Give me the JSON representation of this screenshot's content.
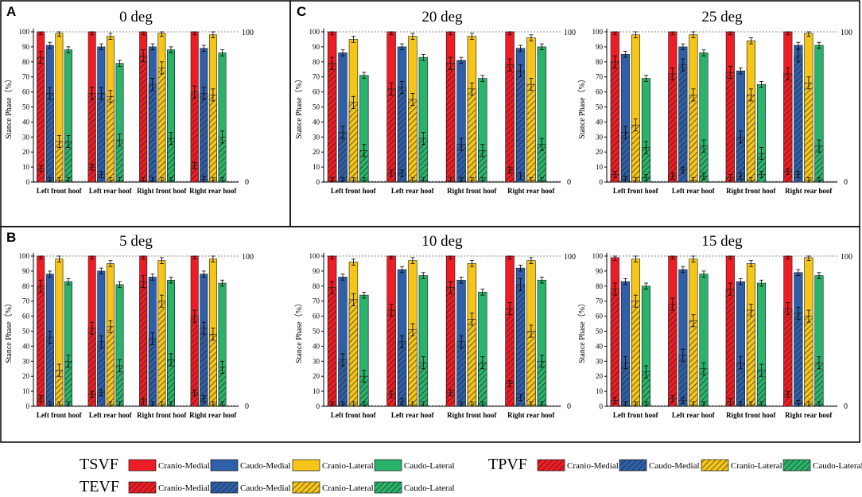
{
  "chart_data": {
    "type": "bar",
    "panel_labels": {
      "A": "A",
      "B": "B",
      "C": "C"
    },
    "categories": [
      "Left front hoof",
      "Left rear hoof",
      "Right front hoof",
      "Right rear hoof"
    ],
    "ylabel": "Stance Phase（%）",
    "ylim": [
      0,
      100
    ],
    "yticks": [
      "0",
      "10",
      "20",
      "30",
      "40",
      "50",
      "60",
      "70",
      "80",
      "90",
      "100"
    ],
    "ref_lines": [
      "100",
      "0"
    ],
    "colors": {
      "Cranio-Medial": "#ee1c24",
      "Caudo-Medial": "#2e5fa8",
      "Cranio-Lateral": "#f5c518",
      "Caudo-Lateral": "#29b36b"
    },
    "series_order": [
      "Cranio-Medial",
      "Caudo-Medial",
      "Cranio-Lateral",
      "Caudo-Lateral"
    ],
    "charts": [
      {
        "title": "0 deg",
        "TSVF": [
          [
            100,
            91,
            99,
            88
          ],
          [
            100,
            90,
            97,
            79
          ],
          [
            100,
            90,
            99,
            88
          ],
          [
            100,
            89,
            98,
            86
          ]
        ],
        "TPVF": [
          [
            83,
            59,
            27,
            27
          ],
          [
            59,
            59,
            57,
            28
          ],
          [
            84,
            65,
            76,
            29
          ],
          [
            60,
            59,
            58,
            30
          ]
        ],
        "TEVF": [
          [
            9,
            1,
            1,
            1
          ],
          [
            10,
            5,
            1,
            1
          ],
          [
            1,
            1,
            1,
            1
          ],
          [
            11,
            2,
            1,
            1
          ]
        ]
      },
      {
        "title": "20 deg",
        "TSVF": [
          [
            100,
            86,
            95,
            71
          ],
          [
            100,
            90,
            97,
            83
          ],
          [
            100,
            81,
            97,
            69
          ],
          [
            100,
            89,
            96,
            90
          ]
        ],
        "TPVF": [
          [
            79,
            33,
            53,
            21
          ],
          [
            62,
            63,
            55,
            29
          ],
          [
            79,
            25,
            62,
            21
          ],
          [
            78,
            74,
            65,
            25
          ]
        ],
        "TEVF": [
          [
            1,
            1,
            1,
            1
          ],
          [
            6,
            6,
            1,
            1
          ],
          [
            1,
            1,
            1,
            1
          ],
          [
            8,
            4,
            1,
            1
          ]
        ]
      },
      {
        "title": "25 deg",
        "TSVF": [
          [
            100,
            85,
            98,
            69
          ],
          [
            100,
            90,
            98,
            86
          ],
          [
            100,
            74,
            94,
            65
          ],
          [
            100,
            91,
            99,
            91
          ]
        ],
        "TPVF": [
          [
            80,
            33,
            38,
            23
          ],
          [
            72,
            78,
            58,
            24
          ],
          [
            73,
            30,
            58,
            19
          ],
          [
            72,
            84,
            66,
            24
          ]
        ],
        "TEVF": [
          [
            5,
            2,
            1,
            3
          ],
          [
            4,
            8,
            1,
            4
          ],
          [
            3,
            4,
            1,
            5
          ],
          [
            7,
            5,
            1,
            1
          ]
        ]
      },
      {
        "title": "5 deg",
        "TSVF": [
          [
            100,
            88,
            98,
            83
          ],
          [
            100,
            90,
            95,
            81
          ],
          [
            100,
            86,
            97,
            84
          ],
          [
            100,
            88,
            98,
            82
          ]
        ],
        "TPVF": [
          [
            80,
            46,
            24,
            30
          ],
          [
            52,
            43,
            53,
            27
          ],
          [
            83,
            45,
            70,
            31
          ],
          [
            60,
            52,
            48,
            26
          ]
        ],
        "TEVF": [
          [
            5,
            1,
            1,
            1
          ],
          [
            8,
            9,
            1,
            1
          ],
          [
            3,
            1,
            1,
            1
          ],
          [
            9,
            5,
            1,
            1
          ]
        ]
      },
      {
        "title": "10 deg",
        "TSVF": [
          [
            100,
            86,
            96,
            74
          ],
          [
            100,
            91,
            97,
            87
          ],
          [
            100,
            84,
            95,
            76
          ],
          [
            100,
            92,
            97,
            84
          ]
        ],
        "TPVF": [
          [
            79,
            31,
            71,
            20
          ],
          [
            64,
            43,
            51,
            29
          ],
          [
            79,
            43,
            58,
            29
          ],
          [
            65,
            81,
            50,
            30
          ]
        ],
        "TEVF": [
          [
            1,
            1,
            1,
            1
          ],
          [
            8,
            3,
            1,
            1
          ],
          [
            9,
            1,
            1,
            1
          ],
          [
            15,
            6,
            1,
            1
          ]
        ]
      },
      {
        "title": "15 deg",
        "TSVF": [
          [
            99,
            83,
            98,
            80
          ],
          [
            100,
            91,
            98,
            88
          ],
          [
            100,
            83,
            95,
            82
          ],
          [
            100,
            89,
            99,
            87
          ]
        ],
        "TPVF": [
          [
            78,
            29,
            70,
            23
          ],
          [
            68,
            34,
            57,
            25
          ],
          [
            78,
            29,
            64,
            24
          ],
          [
            65,
            62,
            60,
            29
          ]
        ],
        "TEVF": [
          [
            4,
            1,
            1,
            1
          ],
          [
            5,
            4,
            1,
            1
          ],
          [
            3,
            1,
            1,
            1
          ],
          [
            8,
            2,
            1,
            1
          ]
        ]
      }
    ],
    "legend": {
      "TSVF": {
        "label": "TSVF",
        "items": [
          "Cranio-Medial",
          "Caudo-Medial",
          "Cranio-Lateral",
          "Caudo-Lateral"
        ]
      },
      "TEVF": {
        "label": "TEVF",
        "items": [
          "Cranio-Medial",
          "Caudo-Medial",
          "Cranio-Lateral",
          "Caudo-Lateral"
        ]
      },
      "TPVF": {
        "label": "TPVF",
        "items": [
          "Cranio-Medial",
          "Caudo-Medial",
          "Cranio-Lateral",
          "Caudo-Lateral"
        ]
      }
    }
  }
}
